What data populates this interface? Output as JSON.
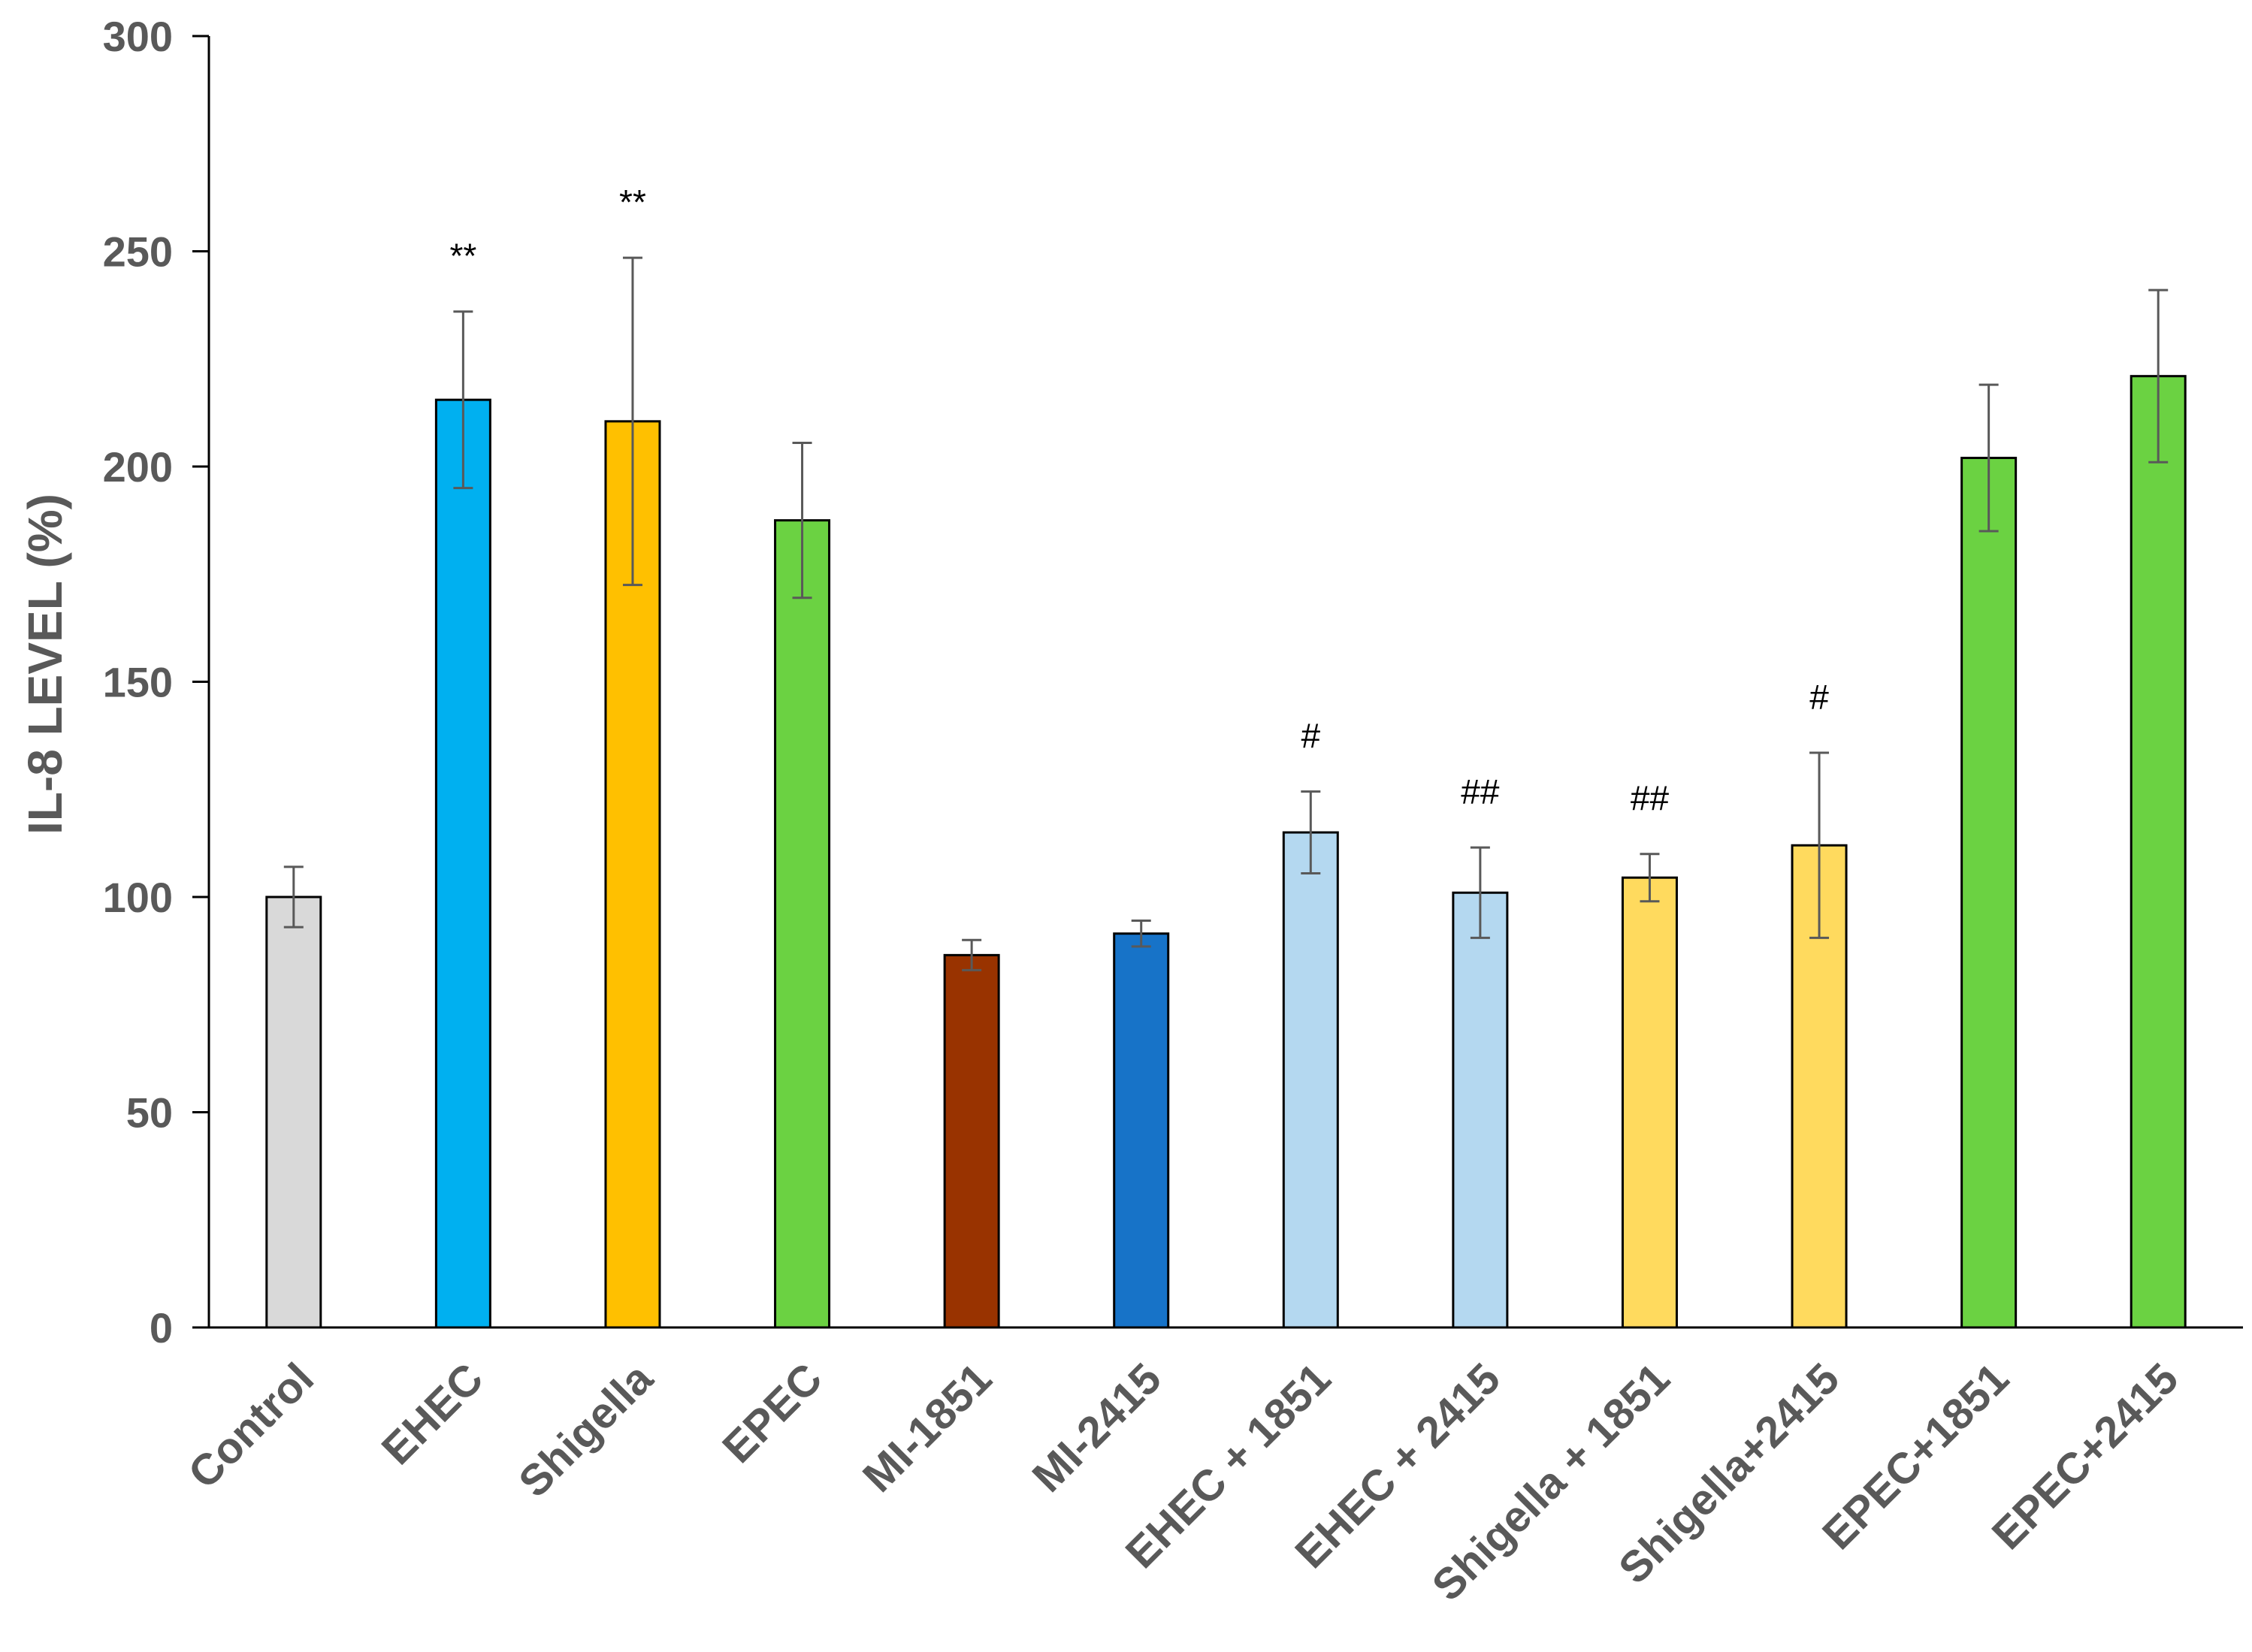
{
  "chart_data": {
    "type": "bar",
    "ylabel": "IL-8 LEVEL (%)",
    "xlabel": "",
    "ylim": [
      0,
      300
    ],
    "yticks": [
      0,
      50,
      100,
      150,
      200,
      250,
      300
    ],
    "grid": false,
    "categories": [
      "Control",
      "EHEC",
      "Shigella",
      "EPEC",
      "MI-1851",
      "MI-2415",
      "EHEC + 1851",
      "EHEC + 2415",
      "Shigella + 1851",
      "Shigella+2415",
      "EPEC+1851",
      "EPEC+2415"
    ],
    "values": [
      100,
      215.5,
      210.5,
      187.5,
      86.5,
      91.5,
      115,
      101,
      104.5,
      112,
      202,
      221
    ],
    "errors": [
      7,
      20.5,
      38,
      18,
      3.5,
      3,
      9.5,
      10.5,
      5.5,
      21.5,
      17,
      20
    ],
    "annotations": [
      "",
      "**",
      "**",
      "",
      "",
      "",
      "#",
      "##",
      "##",
      "#",
      "",
      ""
    ],
    "colors": [
      "#D9D9D9",
      "#00B0F0",
      "#FFC000",
      "#6BD242",
      "#993300",
      "#1773C8",
      "#B4D8F0",
      "#B4D8F0",
      "#FFDA5E",
      "#FFDA5E",
      "#6BD242",
      "#6BD242"
    ]
  }
}
